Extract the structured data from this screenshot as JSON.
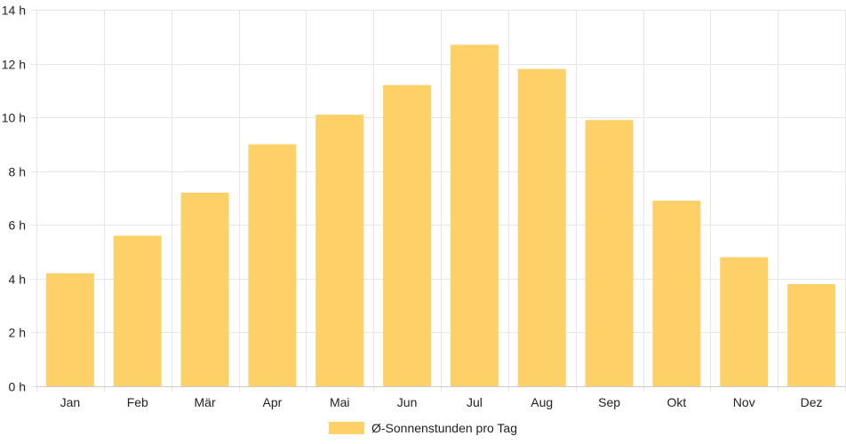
{
  "chart_data": {
    "type": "bar",
    "categories": [
      "Jan",
      "Feb",
      "Mär",
      "Apr",
      "Mai",
      "Jun",
      "Jul",
      "Aug",
      "Sep",
      "Okt",
      "Nov",
      "Dez"
    ],
    "series": [
      {
        "name": "Ø-Sonnenstunden pro Tag",
        "values": [
          4.2,
          5.6,
          7.2,
          9.0,
          10.1,
          11.2,
          12.7,
          11.8,
          9.9,
          6.9,
          4.8,
          3.8
        ]
      }
    ],
    "ylim": [
      0,
      14
    ],
    "yticks": [
      0,
      2,
      4,
      6,
      8,
      10,
      12,
      14
    ],
    "ytick_suffix": " h",
    "grid": true,
    "legend_position": "bottom",
    "colors": {
      "bar": "#fdd068",
      "grid": "#e6e6e6",
      "axis": "#cccccc"
    }
  }
}
